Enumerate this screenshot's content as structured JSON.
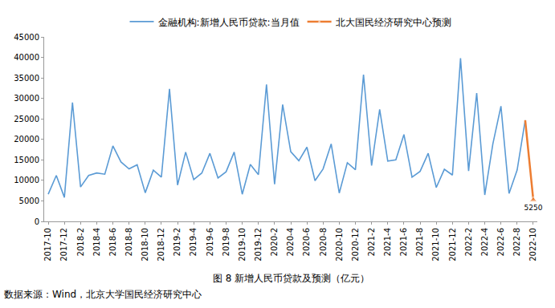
{
  "chart_data": {
    "type": "line",
    "title": "图 8 新增人民币贷款及预测（亿元）",
    "source": "数据来源：Wind，北京大学国民经济研究中心",
    "categories": [
      "2017-10",
      null,
      "2017-12",
      null,
      "2018-2",
      null,
      "2018-4",
      null,
      "2018-6",
      null,
      "2018-8",
      null,
      "2018-10",
      null,
      "2018-12",
      null,
      "2019-2",
      null,
      "2019-4",
      null,
      "2019-6",
      null,
      "2019-8",
      null,
      "2019-10",
      null,
      "2019-12",
      null,
      "2020-2",
      null,
      "2020-4",
      null,
      "2020-6",
      null,
      "2020-8",
      null,
      "2020-10",
      null,
      "2020-12",
      null,
      "2021-2",
      null,
      "2021-4",
      null,
      "2021-6",
      null,
      "2021-8",
      null,
      "2021-10",
      null,
      "2021-12",
      null,
      "2022-2",
      null,
      "2022-4",
      null,
      "2022-6",
      null,
      "2022-8",
      null,
      "2022-10"
    ],
    "series": [
      {
        "name": "金融机构:新增人民币贷款:当月值",
        "color": "#5b9bd5",
        "values": [
          6632,
          11200,
          5844,
          29000,
          8393,
          11200,
          11800,
          11500,
          18400,
          14500,
          12800,
          13800,
          6970,
          12500,
          10800,
          32300,
          8858,
          16900,
          10200,
          11800,
          16600,
          10600,
          12100,
          16900,
          6613,
          13900,
          11400,
          33400,
          9057,
          28500,
          17000,
          14800,
          18100,
          9927,
          12800,
          18900,
          6898,
          14300,
          12600,
          35800,
          13600,
          27300,
          14700,
          15000,
          21200,
          10800,
          12200,
          16600,
          8262,
          12700,
          11300,
          39800,
          12300,
          31300,
          6454,
          18900,
          28100,
          6790,
          12500,
          24700,
          null
        ]
      },
      {
        "name": "北大国民经济研究中心预测",
        "color": "#ed7d31",
        "marker": "triangle-up",
        "data_labels": true,
        "values": [
          null,
          null,
          null,
          null,
          null,
          null,
          null,
          null,
          null,
          null,
          null,
          null,
          null,
          null,
          null,
          null,
          null,
          null,
          null,
          null,
          null,
          null,
          null,
          null,
          null,
          null,
          null,
          null,
          null,
          null,
          null,
          null,
          null,
          null,
          null,
          null,
          null,
          null,
          null,
          null,
          null,
          null,
          null,
          null,
          null,
          null,
          null,
          null,
          null,
          null,
          null,
          null,
          null,
          null,
          null,
          null,
          null,
          null,
          null,
          24700,
          5250
        ],
        "value_labels": [
          null,
          null,
          null,
          null,
          null,
          null,
          null,
          null,
          null,
          null,
          null,
          null,
          null,
          null,
          null,
          null,
          null,
          null,
          null,
          null,
          null,
          null,
          null,
          null,
          null,
          null,
          null,
          null,
          null,
          null,
          null,
          null,
          null,
          null,
          null,
          null,
          null,
          null,
          null,
          null,
          null,
          null,
          null,
          null,
          null,
          null,
          null,
          null,
          null,
          null,
          null,
          null,
          null,
          null,
          null,
          null,
          null,
          null,
          null,
          null,
          "5250"
        ]
      }
    ],
    "ylim": [
      0,
      45000
    ],
    "yticks": [
      0,
      5000,
      10000,
      15000,
      20000,
      25000,
      30000,
      35000,
      40000,
      45000
    ],
    "grid": false,
    "legend": "top"
  }
}
